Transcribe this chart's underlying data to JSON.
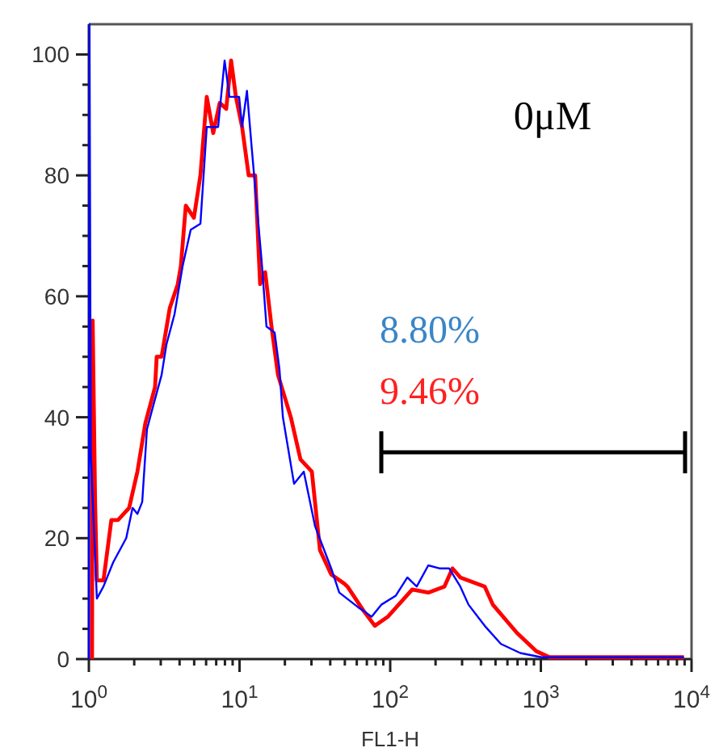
{
  "chart_data": {
    "type": "line",
    "xlabel": "FL1-H",
    "log": "x",
    "xlim": [
      1,
      10000
    ],
    "ylim": [
      0,
      105
    ],
    "xticks": [
      {
        "value": 1,
        "label": "10$^{0}$"
      },
      {
        "value": 2,
        "label": null
      },
      {
        "value": 3,
        "label": null
      },
      {
        "value": 4,
        "label": null
      },
      {
        "value": 5,
        "label": null
      },
      {
        "value": 6,
        "label": null
      },
      {
        "value": 7,
        "label": null
      },
      {
        "value": 8,
        "label": null
      },
      {
        "value": 9,
        "label": null
      },
      {
        "value": 10,
        "label": "10$^{1}$"
      },
      {
        "value": 20,
        "label": null
      },
      {
        "value": 30,
        "label": null
      },
      {
        "value": 40,
        "label": null
      },
      {
        "value": 50,
        "label": null
      },
      {
        "value": 60,
        "label": null
      },
      {
        "value": 70,
        "label": null
      },
      {
        "value": 80,
        "label": null
      },
      {
        "value": 90,
        "label": null
      },
      {
        "value": 100,
        "label": "10$^{2}$"
      },
      {
        "value": 200,
        "label": null
      },
      {
        "value": 300,
        "label": null
      },
      {
        "value": 400,
        "label": null
      },
      {
        "value": 500,
        "label": null
      },
      {
        "value": 600,
        "label": null
      },
      {
        "value": 700,
        "label": null
      },
      {
        "value": 800,
        "label": null
      },
      {
        "value": 900,
        "label": null
      },
      {
        "value": 1000,
        "label": "10$^{3}$"
      },
      {
        "value": 2000,
        "label": null
      },
      {
        "value": 3000,
        "label": null
      },
      {
        "value": 4000,
        "label": null
      },
      {
        "value": 5000,
        "label": null
      },
      {
        "value": 6000,
        "label": null
      },
      {
        "value": 7000,
        "label": null
      },
      {
        "value": 8000,
        "label": null
      },
      {
        "value": 9000,
        "label": null
      },
      {
        "value": 10000,
        "label": "10$^{4}$"
      }
    ],
    "yticks": [
      0,
      {
        "value": 5,
        "label": null
      },
      {
        "value": 10,
        "label": null
      },
      {
        "value": 15,
        "label": null
      },
      20,
      {
        "value": 25,
        "label": null
      },
      {
        "value": 30,
        "label": null
      },
      {
        "value": 35,
        "label": null
      },
      40,
      {
        "value": 45,
        "label": null
      },
      {
        "value": 50,
        "label": null
      },
      {
        "value": 55,
        "label": null
      },
      60,
      {
        "value": 65,
        "label": null
      },
      {
        "value": 70,
        "label": null
      },
      {
        "value": 75,
        "label": null
      },
      80,
      {
        "value": 85,
        "label": null
      },
      {
        "value": 90,
        "label": null
      },
      {
        "value": 95,
        "label": null
      },
      100
    ],
    "grid": false,
    "marker": "none",
    "line_style": "solid",
    "series": [
      {
        "color": "#0000ff",
        "x": [
          1,
          1.01,
          1.03,
          1.13,
          1.25,
          1.45,
          1.77,
          1.95,
          2.1,
          2.26,
          2.43,
          2.68,
          3.04,
          3.27,
          3.7,
          4.19,
          4.74,
          5.5,
          6.06,
          7.21,
          7.96,
          8.57,
          9.94,
          10.4,
          11.2,
          12.1,
          14.0,
          15.1,
          17.1,
          18.4,
          19.4,
          23.0,
          26.7,
          31.7,
          40.6,
          45.9,
          61.8,
          66.5,
          75.3,
          87.3,
          109,
          130,
          150,
          179,
          212,
          246,
          292,
          331,
          424,
          543,
          730,
          1010,
          8900
        ],
        "values": [
          0,
          105,
          34,
          10,
          12,
          16,
          20,
          25,
          24,
          26,
          38,
          42,
          47,
          52,
          57,
          65,
          71,
          72,
          88,
          88,
          99,
          93,
          93,
          88,
          94,
          84,
          66,
          55,
          54,
          48,
          40,
          29,
          31,
          22,
          15,
          11,
          8.5,
          8,
          7,
          9,
          10.5,
          13.5,
          12,
          15.5,
          15,
          15,
          12,
          9,
          5.5,
          2.5,
          1,
          0.3,
          0.3
        ]
      },
      {
        "color": "#ff0000",
        "x": [
          1.05,
          1.06,
          1.1,
          1.13,
          1.25,
          1.41,
          1.56,
          1.85,
          2.1,
          2.37,
          2.75,
          2.82,
          3.04,
          3.44,
          3.89,
          4.08,
          4.4,
          4.98,
          5.5,
          6.06,
          6.69,
          7.39,
          8.16,
          8.79,
          9.46,
          10.4,
          11.5,
          12.7,
          13.7,
          14.8,
          16.3,
          18.0,
          21.9,
          25.4,
          30.2,
          34.2,
          40.6,
          49.5,
          52.0,
          66.5,
          79.1,
          96.4,
          140,
          179,
          229,
          259,
          292,
          424,
          480,
          695,
          933,
          1140,
          8900
        ],
        "values": [
          0,
          56,
          26,
          13,
          13,
          23,
          23,
          25,
          31,
          39,
          45,
          50,
          50,
          58,
          62,
          65,
          75,
          73,
          80,
          93,
          87,
          92,
          91,
          99,
          93,
          88,
          80,
          80,
          62,
          64,
          55,
          47,
          40,
          33,
          31,
          18,
          14,
          12.5,
          12,
          8,
          5.5,
          7,
          11.5,
          11,
          12,
          15,
          13.5,
          12,
          9,
          4.3,
          1.3,
          0.3,
          0.3
        ]
      }
    ],
    "annotations": [
      "0μM",
      "8.80%",
      "9.46%"
    ]
  }
}
